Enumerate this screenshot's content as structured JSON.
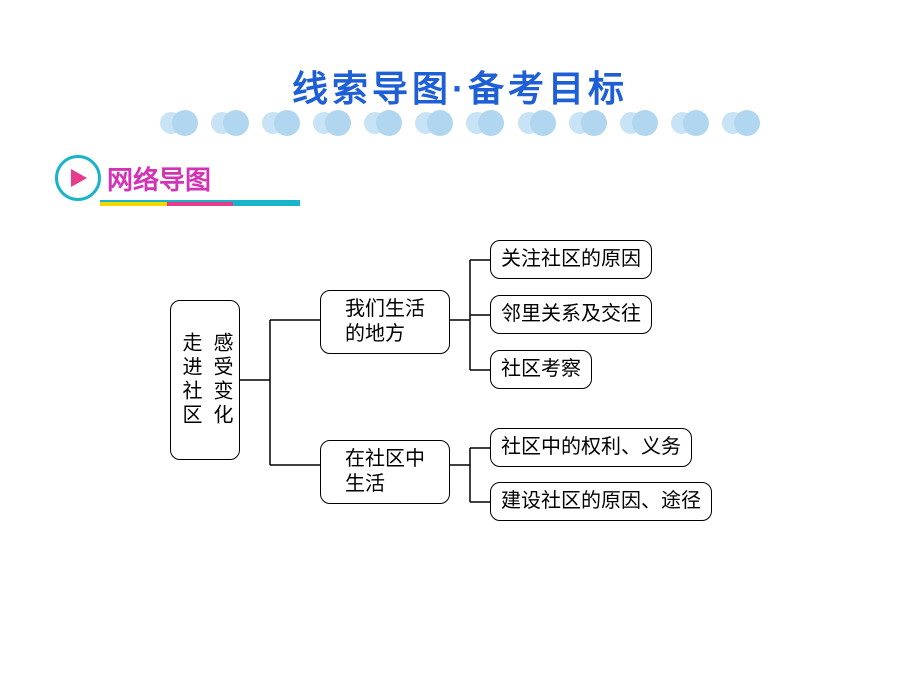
{
  "title": {
    "text": "线索导图·备考目标",
    "color": "#1e5fd6",
    "fontsize": 36,
    "cloud_colors": [
      "#c7e3f5",
      "#b1d6f0"
    ]
  },
  "section": {
    "label": "网络导图",
    "label_color": "#d334b6",
    "circle_border": "#19b4c9",
    "arrow_color": "#e73c8e",
    "underline_top": "#19b4c9",
    "underline_colors": [
      "#f2d800",
      "#e73c8e",
      "#19b4c9"
    ]
  },
  "diagram": {
    "type": "tree",
    "root": {
      "col1": "走进社区",
      "col2": "感受变化"
    },
    "branches": [
      {
        "label_line1": "我们生活",
        "label_line2": "的地方",
        "children": [
          "关注社区的原因",
          "邻里关系及交往",
          "社区考察"
        ]
      },
      {
        "label_line1": "在社区中",
        "label_line2": "生活",
        "children": [
          "社区中的权利、义务",
          "建设社区的原因、途径"
        ]
      }
    ],
    "node_border_color": "#000000",
    "node_bg": "#ffffff",
    "node_fontsize": 20,
    "connector_color": "#000000"
  },
  "background_color": "#ffffff"
}
